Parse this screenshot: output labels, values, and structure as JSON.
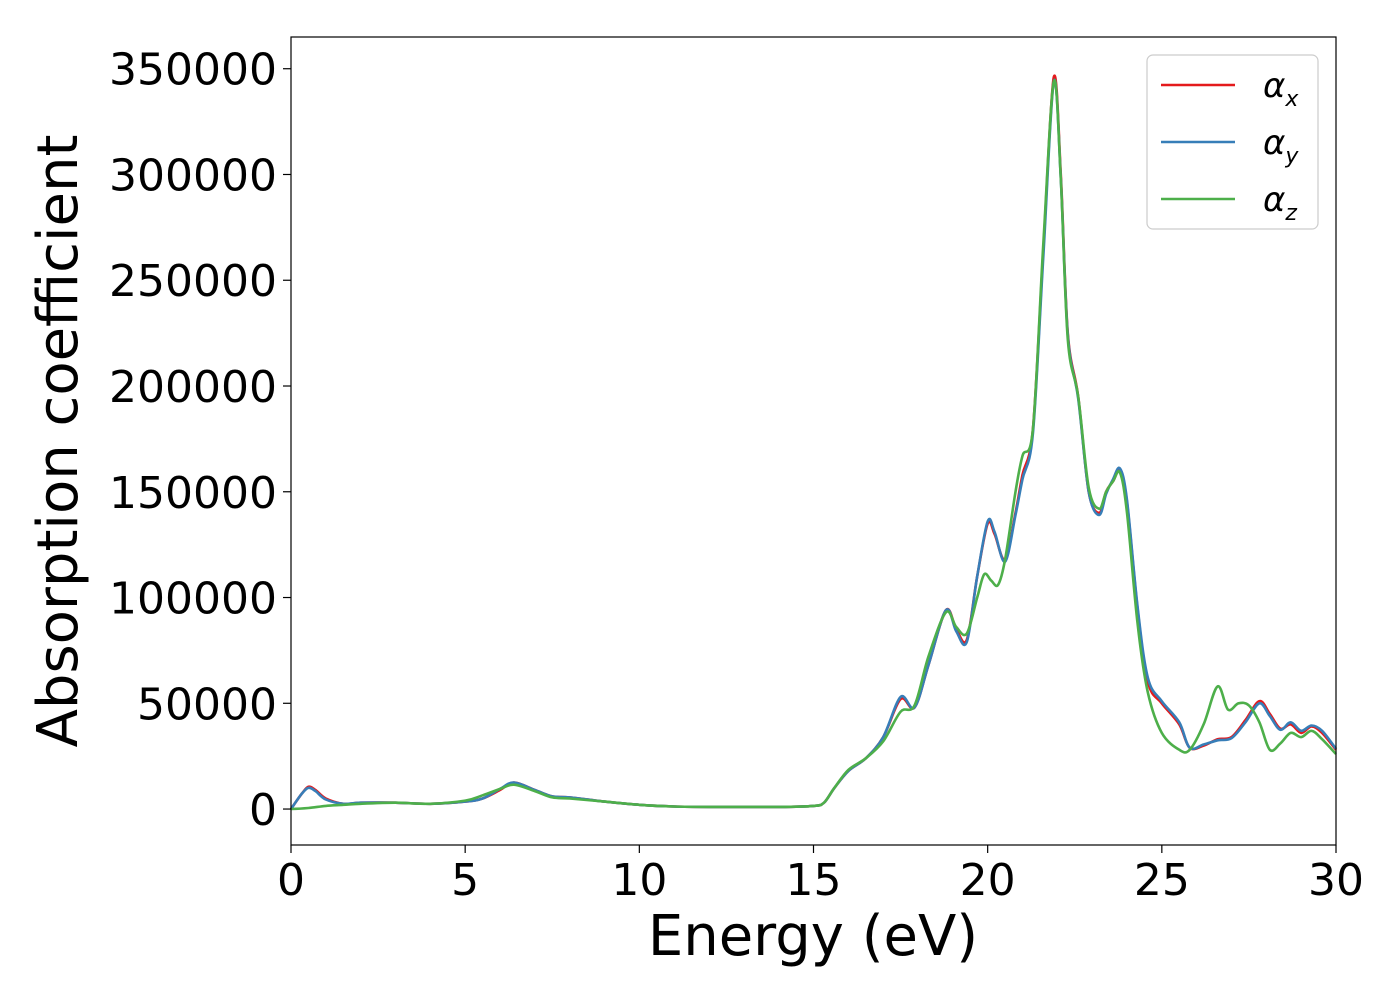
{
  "chart_data": {
    "type": "line",
    "xlabel": "Energy (eV)",
    "ylabel": "Absorption coefficient",
    "xlim": [
      0,
      30
    ],
    "ylim": [
      -17000,
      365000
    ],
    "xticks": [
      0,
      5,
      10,
      15,
      20,
      25,
      30
    ],
    "yticks": [
      0,
      50000,
      100000,
      150000,
      200000,
      250000,
      300000,
      350000
    ],
    "grid": false,
    "legend_position": "top-right",
    "series": [
      {
        "name": "α",
        "sub": "x",
        "color": "#e41a1c",
        "x": [
          0,
          0.3,
          0.5,
          0.7,
          1.0,
          1.5,
          2.0,
          3.0,
          4.0,
          5.0,
          5.5,
          6.0,
          6.4,
          7.0,
          7.5,
          8.0,
          9.0,
          10.0,
          11.0,
          12.0,
          13.0,
          14.0,
          15.0,
          15.3,
          15.6,
          16.0,
          16.5,
          17.0,
          17.5,
          17.9,
          18.3,
          18.8,
          19.1,
          19.4,
          19.7,
          20.0,
          20.2,
          20.5,
          20.8,
          21.0,
          21.3,
          21.6,
          21.9,
          22.1,
          22.3,
          22.6,
          22.9,
          23.2,
          23.4,
          23.6,
          23.8,
          24.0,
          24.3,
          24.6,
          25.0,
          25.5,
          25.8,
          26.2,
          26.6,
          27.0,
          27.4,
          27.8,
          28.1,
          28.4,
          28.7,
          29.0,
          29.3,
          29.6,
          30.0
        ],
        "y": [
          0,
          7000,
          10500,
          9000,
          5000,
          2500,
          3000,
          3000,
          2500,
          3500,
          5000,
          9000,
          12500,
          9000,
          6000,
          5500,
          3500,
          2000,
          1200,
          1000,
          1000,
          1000,
          1500,
          3000,
          10000,
          18000,
          24000,
          34000,
          52000,
          48000,
          68000,
          94000,
          85000,
          80000,
          110000,
          135000,
          130000,
          118000,
          140000,
          158000,
          180000,
          265000,
          346000,
          300000,
          225000,
          195000,
          150000,
          140000,
          150000,
          155000,
          160000,
          145000,
          95000,
          60000,
          50000,
          40000,
          29000,
          30000,
          33000,
          34000,
          42000,
          51000,
          45000,
          38000,
          40000,
          36000,
          39000,
          36000,
          28000
        ]
      },
      {
        "name": "α",
        "sub": "y",
        "color": "#377eb8",
        "x": [
          0,
          0.3,
          0.5,
          0.7,
          1.0,
          1.5,
          2.0,
          3.0,
          4.0,
          5.0,
          5.5,
          6.0,
          6.4,
          7.0,
          7.5,
          8.0,
          9.0,
          10.0,
          11.0,
          12.0,
          13.0,
          14.0,
          15.0,
          15.3,
          15.6,
          16.0,
          16.5,
          17.0,
          17.5,
          17.9,
          18.3,
          18.8,
          19.1,
          19.4,
          19.7,
          20.0,
          20.2,
          20.5,
          20.8,
          21.0,
          21.3,
          21.6,
          21.9,
          22.1,
          22.3,
          22.6,
          22.9,
          23.2,
          23.4,
          23.6,
          23.8,
          24.0,
          24.3,
          24.6,
          25.0,
          25.5,
          25.8,
          26.2,
          26.6,
          27.0,
          27.4,
          27.8,
          28.1,
          28.4,
          28.7,
          29.0,
          29.3,
          29.6,
          30.0
        ],
        "y": [
          0,
          7000,
          10000,
          8500,
          4500,
          2500,
          3000,
          3000,
          2500,
          3500,
          5000,
          9500,
          12500,
          9000,
          6000,
          5500,
          3500,
          2000,
          1200,
          1000,
          1000,
          1000,
          1500,
          3000,
          10000,
          18000,
          24000,
          34000,
          53000,
          48000,
          68000,
          94000,
          84000,
          79000,
          110000,
          136000,
          131000,
          117000,
          139000,
          156000,
          178000,
          262000,
          344000,
          298000,
          224000,
          194000,
          150000,
          139000,
          149000,
          156000,
          161000,
          146000,
          96000,
          62000,
          51000,
          41000,
          29000,
          30500,
          32500,
          33500,
          41000,
          50000,
          44000,
          37500,
          41000,
          37000,
          39500,
          37000,
          28500
        ]
      },
      {
        "name": "α",
        "sub": "z",
        "color": "#4daf4a",
        "x": [
          0,
          0.5,
          1.0,
          1.5,
          2.0,
          3.0,
          4.0,
          5.0,
          5.5,
          6.0,
          6.4,
          7.0,
          7.5,
          8.0,
          9.0,
          10.0,
          11.0,
          12.0,
          13.0,
          14.0,
          15.0,
          15.3,
          15.6,
          16.0,
          16.5,
          17.0,
          17.5,
          17.9,
          18.3,
          18.8,
          19.1,
          19.4,
          19.7,
          19.9,
          20.1,
          20.3,
          20.5,
          20.8,
          21.0,
          21.3,
          21.6,
          21.9,
          22.1,
          22.3,
          22.6,
          22.9,
          23.2,
          23.4,
          23.6,
          23.8,
          24.0,
          24.3,
          24.6,
          25.0,
          25.5,
          25.8,
          26.2,
          26.6,
          26.9,
          27.2,
          27.5,
          27.8,
          28.1,
          28.4,
          28.7,
          29.0,
          29.3,
          29.6,
          30.0
        ],
        "y": [
          0,
          500,
          1500,
          2000,
          2500,
          3000,
          2500,
          4000,
          6500,
          9500,
          11500,
          8500,
          5500,
          5000,
          3500,
          2000,
          1200,
          1000,
          1000,
          1000,
          1500,
          3000,
          10000,
          18500,
          24000,
          32000,
          46000,
          49000,
          72000,
          93000,
          86000,
          83000,
          100000,
          111000,
          108000,
          106000,
          118000,
          150000,
          167000,
          180000,
          268000,
          344000,
          298000,
          222000,
          195000,
          152000,
          142000,
          150000,
          155000,
          159000,
          140000,
          88000,
          55000,
          36000,
          28000,
          28000,
          40000,
          58000,
          47000,
          50000,
          49000,
          41000,
          28000,
          31000,
          36000,
          34000,
          37000,
          33000,
          26000
        ]
      }
    ]
  }
}
